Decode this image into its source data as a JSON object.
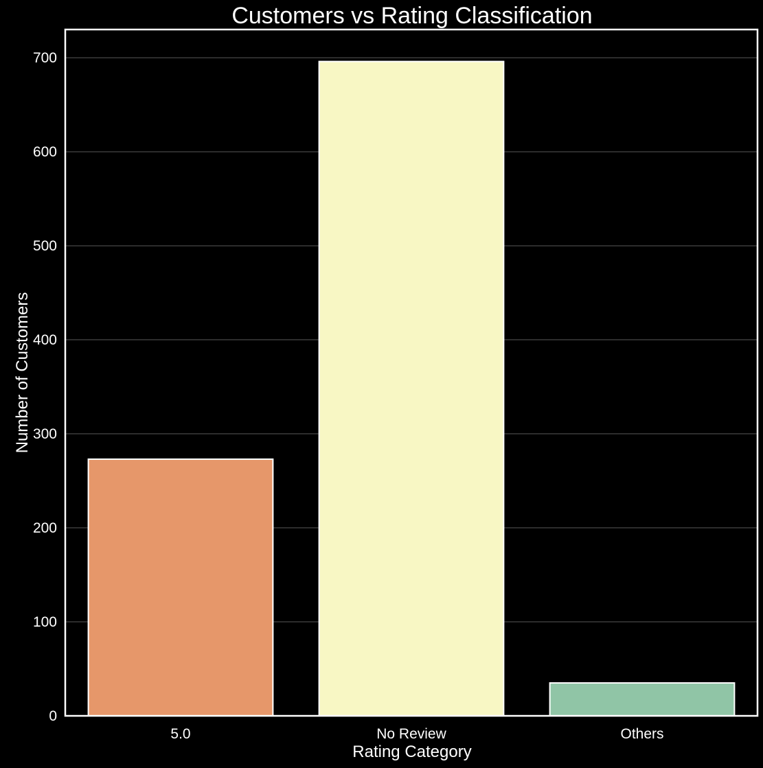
{
  "chart_data": {
    "type": "bar",
    "title": "Customers vs Rating Classification",
    "xlabel": "Rating Category",
    "ylabel": "Number of Customers",
    "categories": [
      "5.0",
      "No Review",
      "Others"
    ],
    "values": [
      273,
      696,
      35
    ],
    "colors": [
      "#e6976a",
      "#f8f7c4",
      "#90c5a6"
    ],
    "ylim": [
      0,
      730
    ],
    "yticks": [
      "0",
      "100",
      "200",
      "300",
      "400",
      "500",
      "600",
      "700"
    ],
    "ytick_values": [
      0,
      100,
      200,
      300,
      400,
      500,
      600,
      700
    ],
    "grid": "horizontal",
    "background": "#000000",
    "foreground": "#ffffff"
  }
}
